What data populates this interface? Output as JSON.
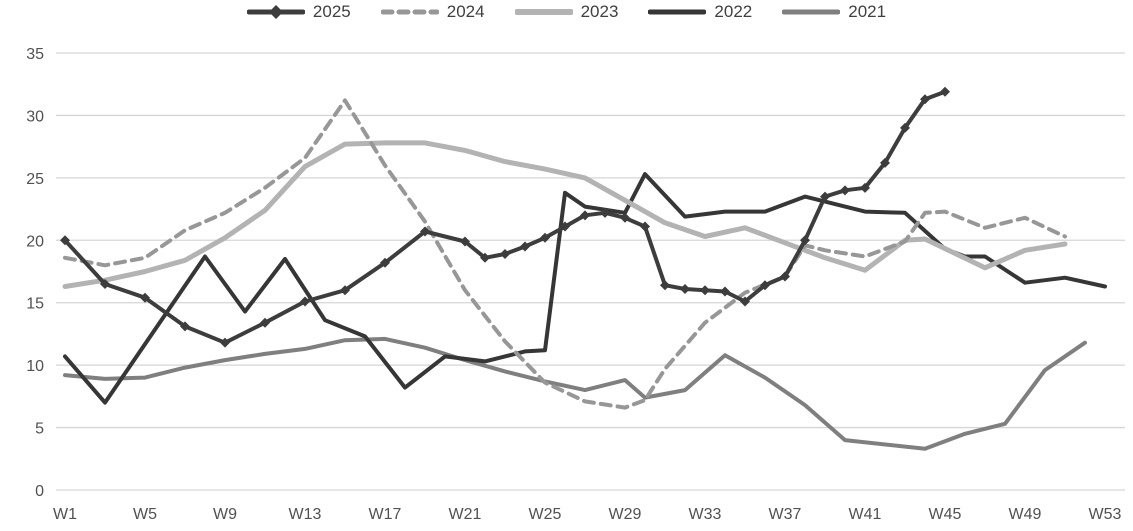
{
  "chart": {
    "legend_position": "top",
    "y_axis_ticks": [
      0,
      5,
      10,
      15,
      20,
      25,
      30,
      35
    ],
    "x_axis_tick_weeks": [
      1,
      5,
      9,
      13,
      17,
      21,
      25,
      29,
      33,
      37,
      41,
      45,
      49,
      53
    ],
    "x_axis_tick_labels": [
      "W1",
      "W5",
      "W9",
      "W13",
      "W17",
      "W21",
      "W25",
      "W29",
      "W33",
      "W37",
      "W41",
      "W45",
      "W49",
      "W53"
    ],
    "gridline_color": "#d6d6d6",
    "tick_label_color": "#515151"
  },
  "chart_data": {
    "type": "line",
    "title": "",
    "xlabel": "",
    "ylabel": "",
    "x_unit": "calendar week",
    "x_range": [
      1,
      53
    ],
    "ylim": [
      0,
      35
    ],
    "y_step": 5,
    "grid": "horizontal",
    "legend_position": "top",
    "series": [
      {
        "name": "2025",
        "color": "#3d3d3d",
        "dash": "solid",
        "marker": "diamond",
        "width": 4,
        "points": [
          [
            1,
            20.0
          ],
          [
            3,
            16.5
          ],
          [
            5,
            15.4
          ],
          [
            7,
            13.1
          ],
          [
            9,
            11.8
          ],
          [
            11,
            13.4
          ],
          [
            13,
            15.1
          ],
          [
            15,
            16.0
          ],
          [
            17,
            18.2
          ],
          [
            19,
            20.7
          ],
          [
            21,
            19.9
          ],
          [
            22,
            18.6
          ],
          [
            23,
            18.9
          ],
          [
            24,
            19.5
          ],
          [
            25,
            20.2
          ],
          [
            26,
            21.1
          ],
          [
            27,
            22.0
          ],
          [
            28,
            22.2
          ],
          [
            29,
            21.8
          ],
          [
            30,
            21.1
          ],
          [
            31,
            16.4
          ],
          [
            32,
            16.1
          ],
          [
            33,
            16.0
          ],
          [
            34,
            15.9
          ],
          [
            35,
            15.1
          ],
          [
            36,
            16.4
          ],
          [
            37,
            17.1
          ],
          [
            38,
            20.0
          ],
          [
            39,
            23.5
          ],
          [
            40,
            24.0
          ],
          [
            41,
            24.2
          ],
          [
            42,
            26.2
          ],
          [
            43,
            29.0
          ],
          [
            44,
            31.3
          ],
          [
            45,
            31.9
          ]
        ]
      },
      {
        "name": "2024",
        "color": "#979797",
        "dash": "dashed",
        "marker": "none",
        "width": 4,
        "points": [
          [
            1,
            18.6
          ],
          [
            3,
            18.0
          ],
          [
            5,
            18.6
          ],
          [
            7,
            20.8
          ],
          [
            9,
            22.2
          ],
          [
            11,
            24.2
          ],
          [
            13,
            26.6
          ],
          [
            15,
            31.2
          ],
          [
            17,
            26.0
          ],
          [
            19,
            21.5
          ],
          [
            21,
            16.0
          ],
          [
            23,
            11.9
          ],
          [
            25,
            8.6
          ],
          [
            27,
            7.1
          ],
          [
            29,
            6.6
          ],
          [
            30,
            7.2
          ],
          [
            31,
            9.7
          ],
          [
            33,
            13.4
          ],
          [
            35,
            15.8
          ],
          [
            37,
            17.1
          ],
          [
            38,
            19.6
          ],
          [
            39,
            19.2
          ],
          [
            41,
            18.7
          ],
          [
            43,
            19.9
          ],
          [
            44,
            22.2
          ],
          [
            45,
            22.3
          ],
          [
            47,
            21.0
          ],
          [
            49,
            21.8
          ],
          [
            51,
            20.3
          ]
        ]
      },
      {
        "name": "2023",
        "color": "#b3b3b3",
        "dash": "solid",
        "marker": "none",
        "width": 5,
        "points": [
          [
            1,
            16.3
          ],
          [
            3,
            16.8
          ],
          [
            5,
            17.5
          ],
          [
            7,
            18.4
          ],
          [
            9,
            20.2
          ],
          [
            11,
            22.4
          ],
          [
            13,
            25.9
          ],
          [
            15,
            27.7
          ],
          [
            17,
            27.8
          ],
          [
            19,
            27.8
          ],
          [
            21,
            27.2
          ],
          [
            23,
            26.3
          ],
          [
            25,
            25.7
          ],
          [
            27,
            25.0
          ],
          [
            29,
            23.2
          ],
          [
            31,
            21.4
          ],
          [
            33,
            20.3
          ],
          [
            35,
            21.0
          ],
          [
            37,
            19.8
          ],
          [
            39,
            18.6
          ],
          [
            41,
            17.6
          ],
          [
            43,
            20.0
          ],
          [
            44,
            20.1
          ],
          [
            47,
            17.8
          ],
          [
            49,
            19.2
          ],
          [
            51,
            19.7
          ]
        ]
      },
      {
        "name": "2022",
        "color": "#363636",
        "dash": "solid",
        "marker": "none",
        "width": 4,
        "points": [
          [
            1,
            10.7
          ],
          [
            3,
            7.0
          ],
          [
            8,
            18.7
          ],
          [
            10,
            14.3
          ],
          [
            12,
            18.5
          ],
          [
            14,
            13.6
          ],
          [
            16,
            12.3
          ],
          [
            18,
            8.2
          ],
          [
            20,
            10.7
          ],
          [
            22,
            10.3
          ],
          [
            24,
            11.1
          ],
          [
            25,
            11.2
          ],
          [
            26,
            23.8
          ],
          [
            27,
            22.7
          ],
          [
            29,
            22.2
          ],
          [
            30,
            25.3
          ],
          [
            32,
            21.9
          ],
          [
            34,
            22.3
          ],
          [
            36,
            22.3
          ],
          [
            38,
            23.5
          ],
          [
            41,
            22.3
          ],
          [
            43,
            22.2
          ],
          [
            45,
            19.3
          ],
          [
            46,
            18.7
          ],
          [
            47,
            18.7
          ],
          [
            49,
            16.6
          ],
          [
            51,
            17.0
          ],
          [
            53,
            16.3
          ]
        ]
      },
      {
        "name": "2021",
        "color": "#7f7f7f",
        "dash": "solid",
        "marker": "none",
        "width": 4,
        "points": [
          [
            1,
            9.2
          ],
          [
            3,
            8.9
          ],
          [
            5,
            9.0
          ],
          [
            7,
            9.8
          ],
          [
            9,
            10.4
          ],
          [
            11,
            10.9
          ],
          [
            13,
            11.3
          ],
          [
            15,
            12.0
          ],
          [
            17,
            12.1
          ],
          [
            19,
            11.4
          ],
          [
            21,
            10.4
          ],
          [
            23,
            9.5
          ],
          [
            25,
            8.7
          ],
          [
            27,
            8.0
          ],
          [
            29,
            8.8
          ],
          [
            30,
            7.4
          ],
          [
            32,
            8.0
          ],
          [
            34,
            10.8
          ],
          [
            36,
            9.0
          ],
          [
            38,
            6.8
          ],
          [
            40,
            4.0
          ],
          [
            44,
            3.3
          ],
          [
            46,
            4.5
          ],
          [
            48,
            5.3
          ],
          [
            50,
            9.6
          ],
          [
            52,
            11.8
          ]
        ]
      }
    ]
  }
}
